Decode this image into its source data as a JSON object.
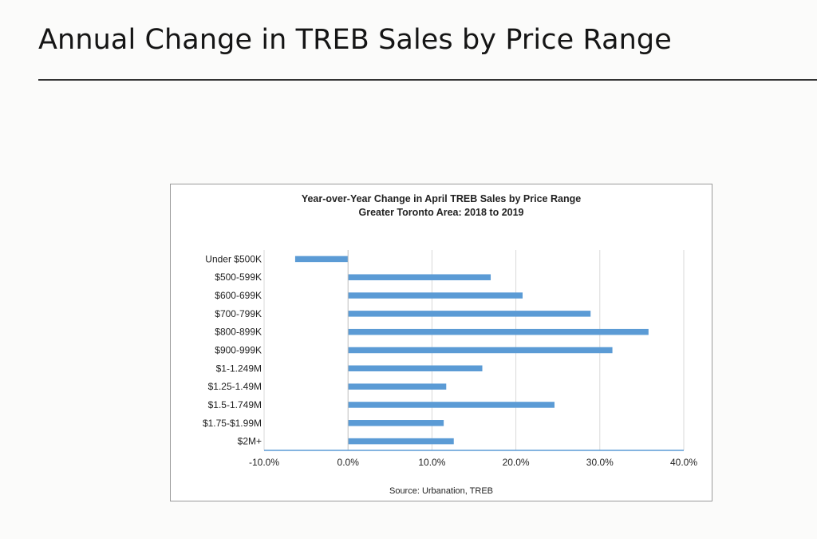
{
  "page": {
    "title": "Annual Change in TREB Sales by Price Range"
  },
  "chart": {
    "title_line1": "Year-over-Year Change in April TREB Sales by Price Range",
    "title_line2": "Greater Toronto Area: 2018 to 2019",
    "source": "Source: Urbanation, TREB"
  },
  "colors": {
    "bar": "#5b9bd5",
    "axis": "#5b9bd5",
    "grid": "#d9d9d9"
  },
  "chart_data": {
    "type": "bar",
    "orientation": "horizontal",
    "title": "Year-over-Year Change in April TREB Sales by Price Range",
    "subtitle": "Greater Toronto Area: 2018 to 2019",
    "xlabel": "",
    "ylabel": "",
    "categories": [
      "Under $500K",
      "$500-599K",
      "$600-699K",
      "$700-799K",
      "$800-899K",
      "$900-999K",
      "$1-1.249M",
      "$1.25-1.49M",
      "$1.5-1.749M",
      "$1.75-$1.99M",
      "$2M+"
    ],
    "values": [
      -6.3,
      17.0,
      20.8,
      28.9,
      35.8,
      31.5,
      16.0,
      11.7,
      24.6,
      11.4,
      12.6
    ],
    "xlim": [
      -10,
      40
    ],
    "xticks": [
      -10,
      0,
      10,
      20,
      30,
      40
    ],
    "xtick_labels": [
      "-10.0%",
      "0.0%",
      "10.0%",
      "20.0%",
      "30.0%",
      "40.0%"
    ],
    "grid": true,
    "legend": "none",
    "source": "Source: Urbanation, TREB"
  }
}
